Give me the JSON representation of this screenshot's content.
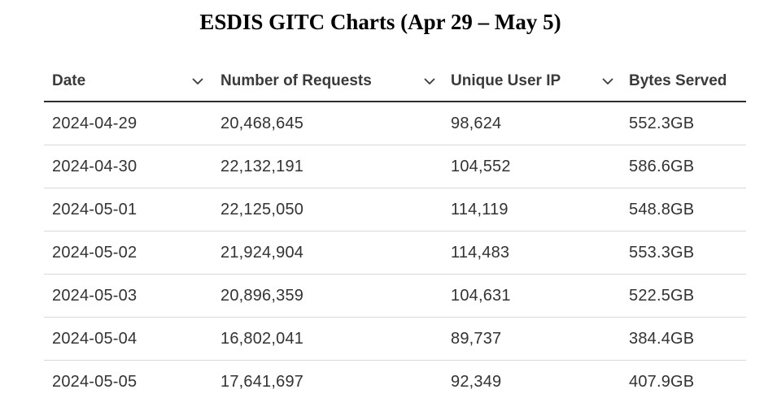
{
  "chart_data": {
    "type": "table",
    "title": "ESDIS GITC Charts (Apr 29 – May 5)",
    "columns": [
      "Date",
      "Number of Requests",
      "Unique User IP",
      "Bytes Served"
    ],
    "rows": [
      [
        "2024-04-29",
        "20,468,645",
        "98,624",
        "552.3GB"
      ],
      [
        "2024-04-30",
        "22,132,191",
        "104,552",
        "586.6GB"
      ],
      [
        "2024-05-01",
        "22,125,050",
        "114,119",
        "548.8GB"
      ],
      [
        "2024-05-02",
        "21,924,904",
        "114,483",
        "553.3GB"
      ],
      [
        "2024-05-03",
        "20,896,359",
        "104,631",
        "522.5GB"
      ],
      [
        "2024-05-04",
        "16,802,041",
        "89,737",
        "384.4GB"
      ],
      [
        "2024-05-05",
        "17,641,697",
        "92,349",
        "407.9GB"
      ]
    ],
    "sort_icons": [
      "chevron-down-icon",
      "chevron-down-icon",
      "chevron-down-icon"
    ]
  }
}
